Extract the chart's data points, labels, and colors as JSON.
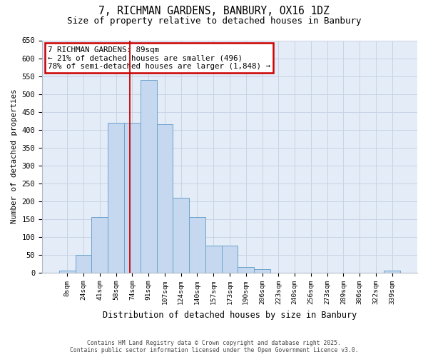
{
  "title_line1": "7, RICHMAN GARDENS, BANBURY, OX16 1DZ",
  "title_line2": "Size of property relative to detached houses in Banbury",
  "xlabel": "Distribution of detached houses by size in Banbury",
  "ylabel": "Number of detached properties",
  "categories": [
    "8sqm",
    "24sqm",
    "41sqm",
    "58sqm",
    "74sqm",
    "91sqm",
    "107sqm",
    "124sqm",
    "140sqm",
    "157sqm",
    "173sqm",
    "190sqm",
    "206sqm",
    "223sqm",
    "240sqm",
    "256sqm",
    "273sqm",
    "289sqm",
    "306sqm",
    "322sqm",
    "339sqm"
  ],
  "values": [
    5,
    50,
    155,
    420,
    420,
    540,
    415,
    210,
    155,
    75,
    75,
    15,
    10,
    0,
    0,
    0,
    0,
    0,
    0,
    0,
    5
  ],
  "bar_color": "#c5d8f0",
  "bar_edge_color": "#6ba3cc",
  "ylim": [
    0,
    650
  ],
  "yticks": [
    0,
    50,
    100,
    150,
    200,
    250,
    300,
    350,
    400,
    450,
    500,
    550,
    600,
    650
  ],
  "grid_color": "#c8d4e4",
  "background_color": "#e4ecf7",
  "annotation_box_text": "7 RICHMAN GARDENS: 89sqm\n← 21% of detached houses are smaller (496)\n78% of semi-detached houses are larger (1,848) →",
  "annotation_box_color": "#cc0000",
  "property_line_x": 3.85,
  "footer_line1": "Contains HM Land Registry data © Crown copyright and database right 2025.",
  "footer_line2": "Contains public sector information licensed under the Open Government Licence v3.0."
}
